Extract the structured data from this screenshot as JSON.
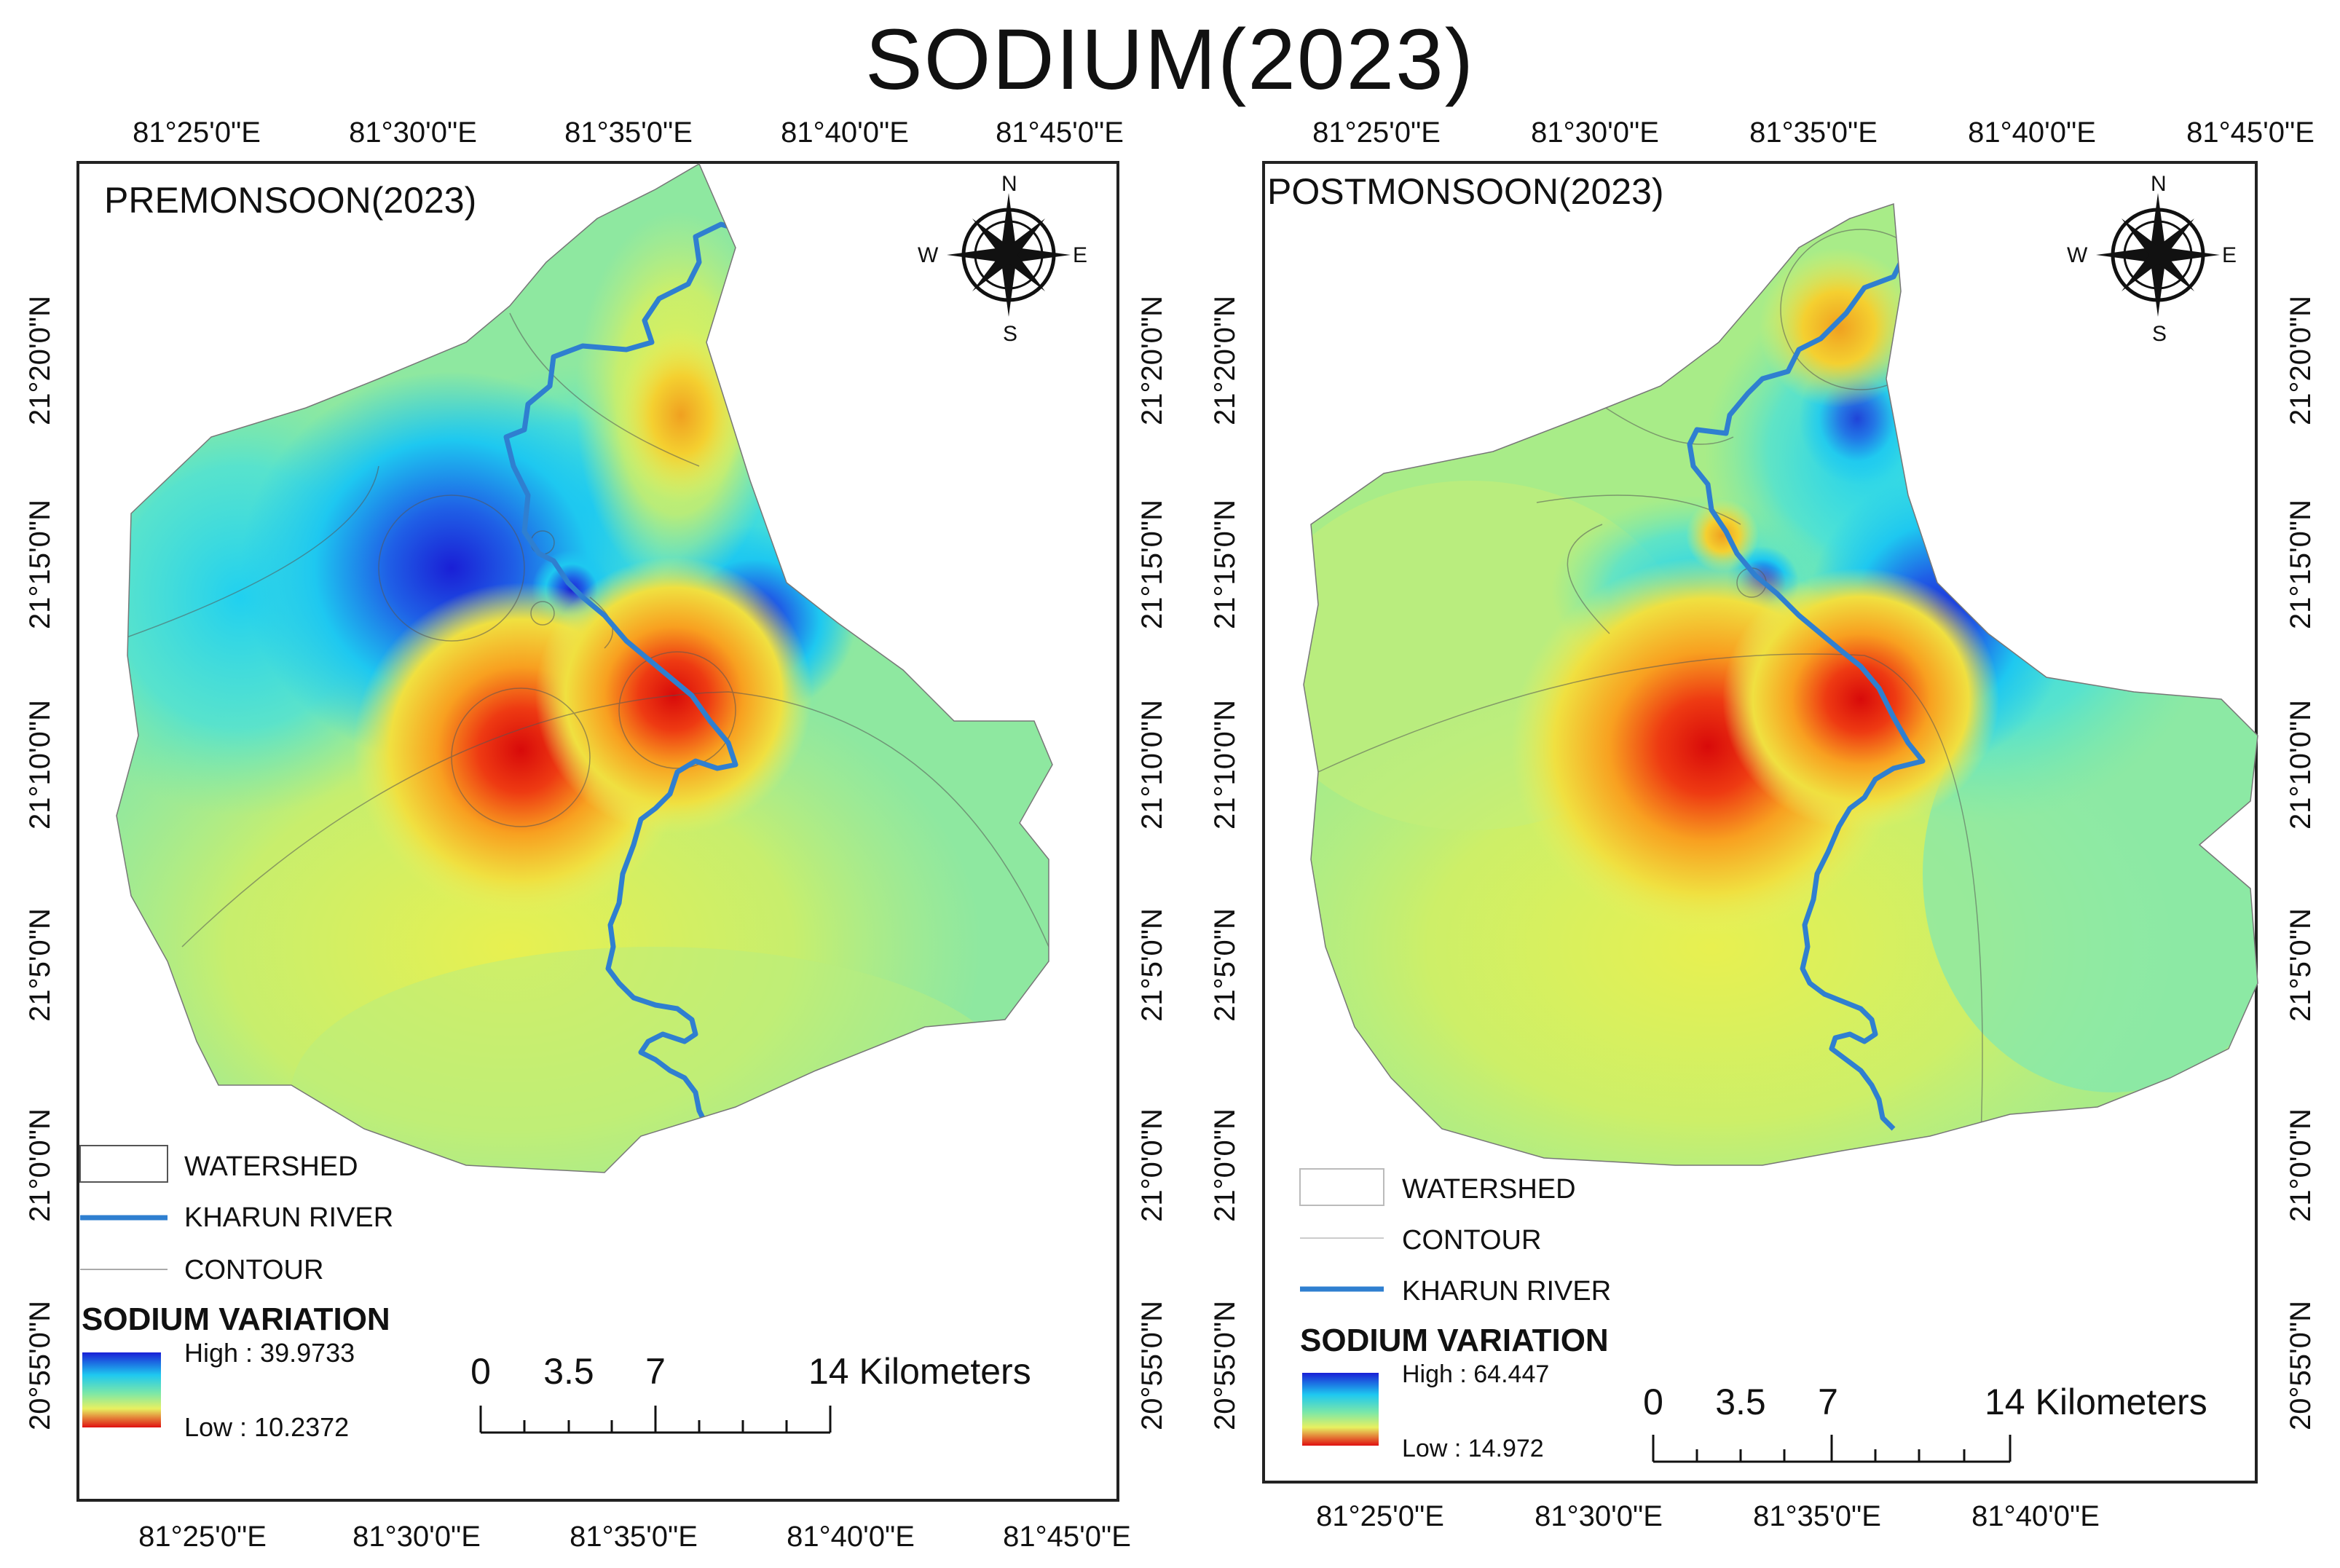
{
  "title": "SODIUM(2023)",
  "colors": {
    "high": "#1a1fd6",
    "mid_high": "#1ec8f0",
    "mid": "#7ee8a6",
    "mid_low": "#e8f060",
    "low": "#e01010",
    "river": "#2f7fd0",
    "frame": "#222222"
  },
  "panels": [
    {
      "id": "premonsoon",
      "label": "PREMONSOON(2023)",
      "lon_labels_top": [
        "81°25'0\"E",
        "81°30'0\"E",
        "81°35'0\"E",
        "81°40'0\"E",
        "81°45'0\"E"
      ],
      "lon_labels_bottom": [
        "81°25'0\"E",
        "81°30'0\"E",
        "81°35'0\"E",
        "81°40'0\"E",
        "81°45'0\"E"
      ],
      "lat_labels": [
        "21°20'0\"N",
        "21°15'0\"N",
        "21°10'0\"N",
        "21°5'0\"N",
        "21°0'0\"N",
        "20°55'0\"N"
      ],
      "compass": {
        "n": "N",
        "e": "E",
        "s": "S",
        "w": "W"
      },
      "legend": {
        "items": [
          "WATERSHED",
          "KHARUN RIVER",
          "CONTOUR"
        ],
        "title": "SODIUM VARIATION",
        "high": "High : 39.9733",
        "low": "Low : 10.2372"
      },
      "scalebar": {
        "ticks": [
          "0",
          "3.5",
          "7"
        ],
        "end": "14 Kilometers"
      }
    },
    {
      "id": "postmonsoon",
      "label": "POSTMONSOON(2023)",
      "lon_labels_top": [
        "81°25'0\"E",
        "81°30'0\"E",
        "81°35'0\"E",
        "81°40'0\"E",
        "81°45'0\"E"
      ],
      "lon_labels_bottom": [
        "81°25'0\"E",
        "81°30'0\"E",
        "81°35'0\"E",
        "81°40'0\"E"
      ],
      "lat_labels": [
        "21°20'0\"N",
        "21°15'0\"N",
        "21°10'0\"N",
        "21°5'0\"N",
        "21°0'0\"N",
        "20°55'0\"N"
      ],
      "compass": {
        "n": "N",
        "e": "E",
        "s": "S",
        "w": "W"
      },
      "legend": {
        "items": [
          "WATERSHED",
          "CONTOUR",
          "KHARUN RIVER"
        ],
        "title": "SODIUM VARIATION",
        "high": "High : 64.447",
        "low": "Low : 14.972"
      },
      "scalebar": {
        "ticks": [
          "0",
          "3.5",
          "7"
        ],
        "end": "14 Kilometers"
      }
    }
  ]
}
